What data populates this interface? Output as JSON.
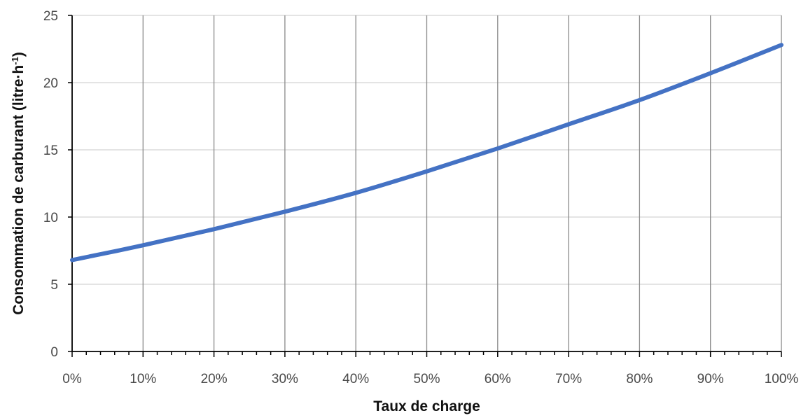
{
  "chart_data": {
    "type": "line",
    "xlabel": "Taux de charge",
    "ylabel": "Consommation de carburant (litre·h",
    "ylabel_sup": "-1",
    "ylabel_close": ")",
    "xlim": [
      0,
      100
    ],
    "ylim": [
      0,
      25
    ],
    "x_ticks": [
      {
        "value": 0,
        "label": "0%"
      },
      {
        "value": 10,
        "label": "10%"
      },
      {
        "value": 20,
        "label": "20%"
      },
      {
        "value": 30,
        "label": "30%"
      },
      {
        "value": 40,
        "label": "40%"
      },
      {
        "value": 50,
        "label": "50%"
      },
      {
        "value": 60,
        "label": "60%"
      },
      {
        "value": 70,
        "label": "70%"
      },
      {
        "value": 80,
        "label": "80%"
      },
      {
        "value": 90,
        "label": "90%"
      },
      {
        "value": 100,
        "label": "100%"
      }
    ],
    "y_ticks": [
      {
        "value": 0,
        "label": "0"
      },
      {
        "value": 5,
        "label": "5"
      },
      {
        "value": 10,
        "label": "10"
      },
      {
        "value": 15,
        "label": "15"
      },
      {
        "value": 20,
        "label": "20"
      },
      {
        "value": 25,
        "label": "25"
      }
    ],
    "x_minor_step": 2,
    "grid": true,
    "series": [
      {
        "color": "#4472c4",
        "x": [
          0,
          10,
          20,
          30,
          40,
          50,
          60,
          70,
          80,
          90,
          100
        ],
        "y": [
          6.8,
          7.9,
          9.1,
          10.4,
          11.8,
          13.4,
          15.1,
          16.9,
          18.7,
          20.7,
          22.8
        ]
      }
    ]
  }
}
